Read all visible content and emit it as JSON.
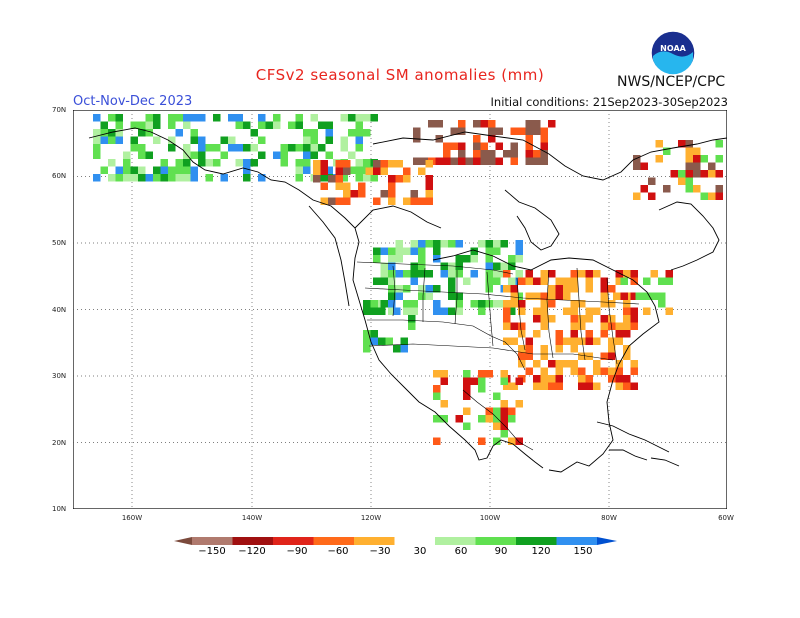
{
  "header": {
    "title": "CFSv2 seasonal SM anomalies (mm)",
    "season": "Oct-Nov-Dec 2023",
    "initial_conditions": "Initial conditions: 21Sep2023-30Sep2023",
    "agency": "NWS/NCEP/CPC",
    "logo_text": "NOAA"
  },
  "axes": {
    "lat_labels": [
      "70N",
      "60N",
      "50N",
      "40N",
      "30N",
      "20N",
      "10N"
    ],
    "lon_labels": [
      "160W",
      "140W",
      "120W",
      "100W",
      "80W",
      "60W"
    ]
  },
  "legend": {
    "labels": [
      "−150",
      "−120",
      "−90",
      "−60",
      "−30",
      "30",
      "60",
      "90",
      "120",
      "150"
    ],
    "colors": [
      "#7b4a3c",
      "#b07a6e",
      "#a01010",
      "#e0241a",
      "#ff6a1a",
      "#ffb030",
      "#ffffff",
      "#b0f0a0",
      "#60e050",
      "#10a020",
      "#3090f0",
      "#0050d0"
    ]
  },
  "colors": {
    "green_light": "#b0f0a0",
    "green": "#60e050",
    "green_dark": "#10a020",
    "blue": "#3090f0",
    "orange": "#ffb030",
    "red_orange": "#ff5a18",
    "red": "#d01010",
    "brown": "#8a5a4c"
  }
}
